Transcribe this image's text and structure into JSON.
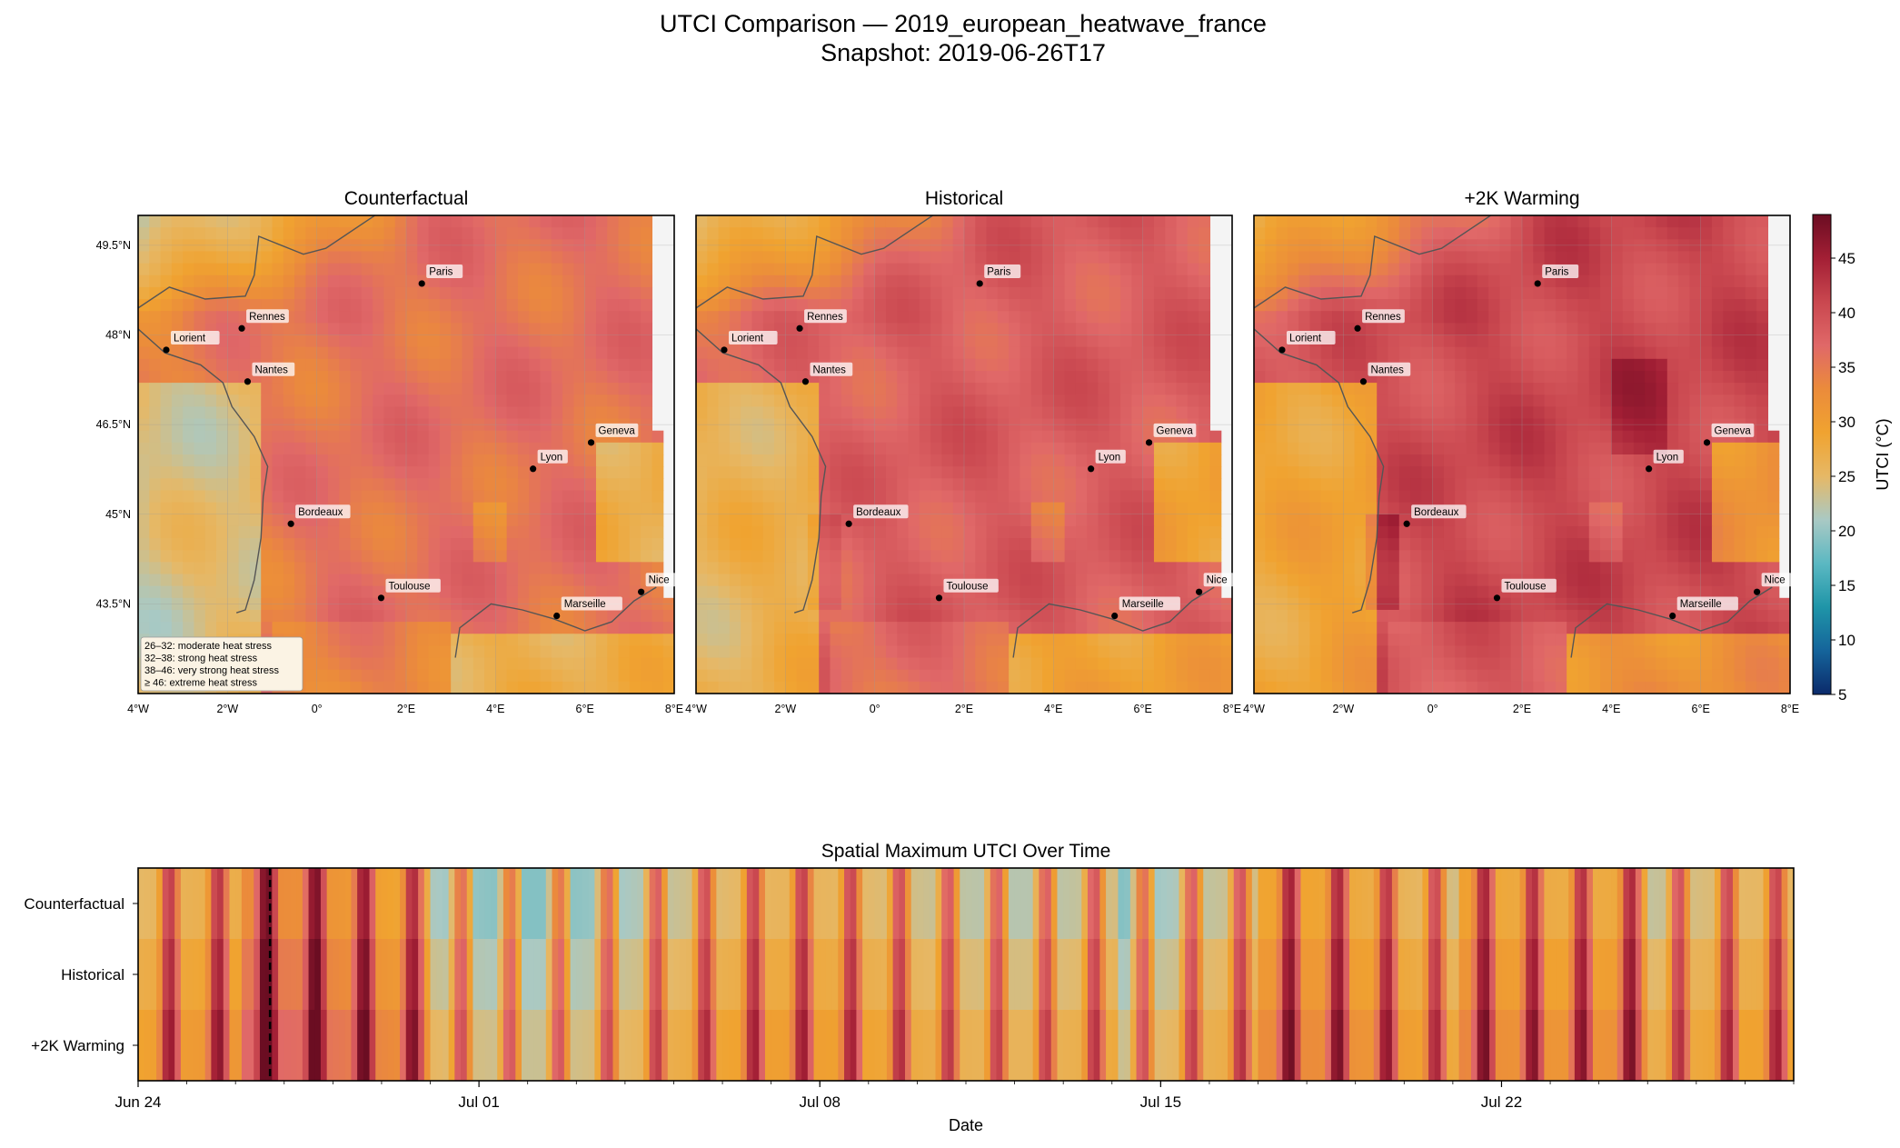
{
  "figure": {
    "title": "UTCI Comparison — 2019_european_heatwave_france",
    "subtitle": "Snapshot: 2019-06-26T17"
  },
  "chart_data": [
    {
      "type": "heatmap",
      "title": "Counterfactual",
      "kind": "map",
      "lon_ticks": [
        "4°W",
        "2°W",
        "0°",
        "2°E",
        "4°E",
        "6°E",
        "8°E"
      ],
      "lat_ticks": [
        "49.5°N",
        "48°N",
        "46.5°N",
        "45°N",
        "43.5°N"
      ],
      "extent": {
        "lon": [
          -4,
          8
        ],
        "lat": [
          42,
          50
        ]
      },
      "heat_level": 0,
      "cities": [
        {
          "name": "Paris",
          "lon": 2.35,
          "lat": 48.86
        },
        {
          "name": "Rennes",
          "lon": -1.68,
          "lat": 48.11
        },
        {
          "name": "Lorient",
          "lon": -3.37,
          "lat": 47.75
        },
        {
          "name": "Nantes",
          "lon": -1.55,
          "lat": 47.22
        },
        {
          "name": "Geneva",
          "lon": 6.14,
          "lat": 46.2
        },
        {
          "name": "Lyon",
          "lon": 4.84,
          "lat": 45.76
        },
        {
          "name": "Bordeaux",
          "lon": -0.58,
          "lat": 44.84
        },
        {
          "name": "Toulouse",
          "lon": 1.44,
          "lat": 43.6
        },
        {
          "name": "Nice",
          "lon": 7.26,
          "lat": 43.7
        },
        {
          "name": "Marseille",
          "lon": 5.37,
          "lat": 43.3
        }
      ],
      "legend_box": [
        "26–32: moderate heat stress",
        "32–38: strong heat stress",
        "38–46: very strong heat stress",
        "≥ 46: extreme heat stress"
      ]
    },
    {
      "type": "heatmap",
      "title": "Historical",
      "kind": "map",
      "lon_ticks": [
        "4°W",
        "2°W",
        "0°",
        "2°E",
        "4°E",
        "6°E",
        "8°E"
      ],
      "extent": {
        "lon": [
          -4,
          8
        ],
        "lat": [
          42,
          50
        ]
      },
      "heat_level": 1
    },
    {
      "type": "heatmap",
      "title": "+2K Warming",
      "kind": "map",
      "lon_ticks": [
        "4°W",
        "2°W",
        "0°",
        "2°E",
        "4°E",
        "6°E",
        "8°E"
      ],
      "extent": {
        "lon": [
          -4,
          8
        ],
        "lat": [
          42,
          50
        ]
      },
      "heat_level": 2
    },
    {
      "type": "heatmap",
      "title": "Spatial Maximum UTCI Over Time",
      "xlabel": "Date",
      "rows": [
        "Counterfactual",
        "Historical",
        "+2K Warming"
      ],
      "x_ticks": [
        "Jun 24",
        "Jul 01",
        "Jul 08",
        "Jul 15",
        "Jul 22"
      ],
      "time_range": [
        "2019-06-24",
        "2019-07-28"
      ],
      "snapshot_marker": "2019-06-26T17",
      "colorbar": {
        "label": "UTCI (°C)",
        "range": [
          5,
          49
        ],
        "ticks": [
          "5",
          "10",
          "15",
          "20",
          "25",
          "30",
          "35",
          "40",
          "45"
        ]
      },
      "colormap": [
        "#0b2a6b",
        "#15649b",
        "#1f95a8",
        "#5bb8c2",
        "#a9c9c4",
        "#e6b866",
        "#f0a330",
        "#eb8b3b",
        "#e06868",
        "#c9474f",
        "#a31f35",
        "#6b0d22"
      ]
    }
  ]
}
